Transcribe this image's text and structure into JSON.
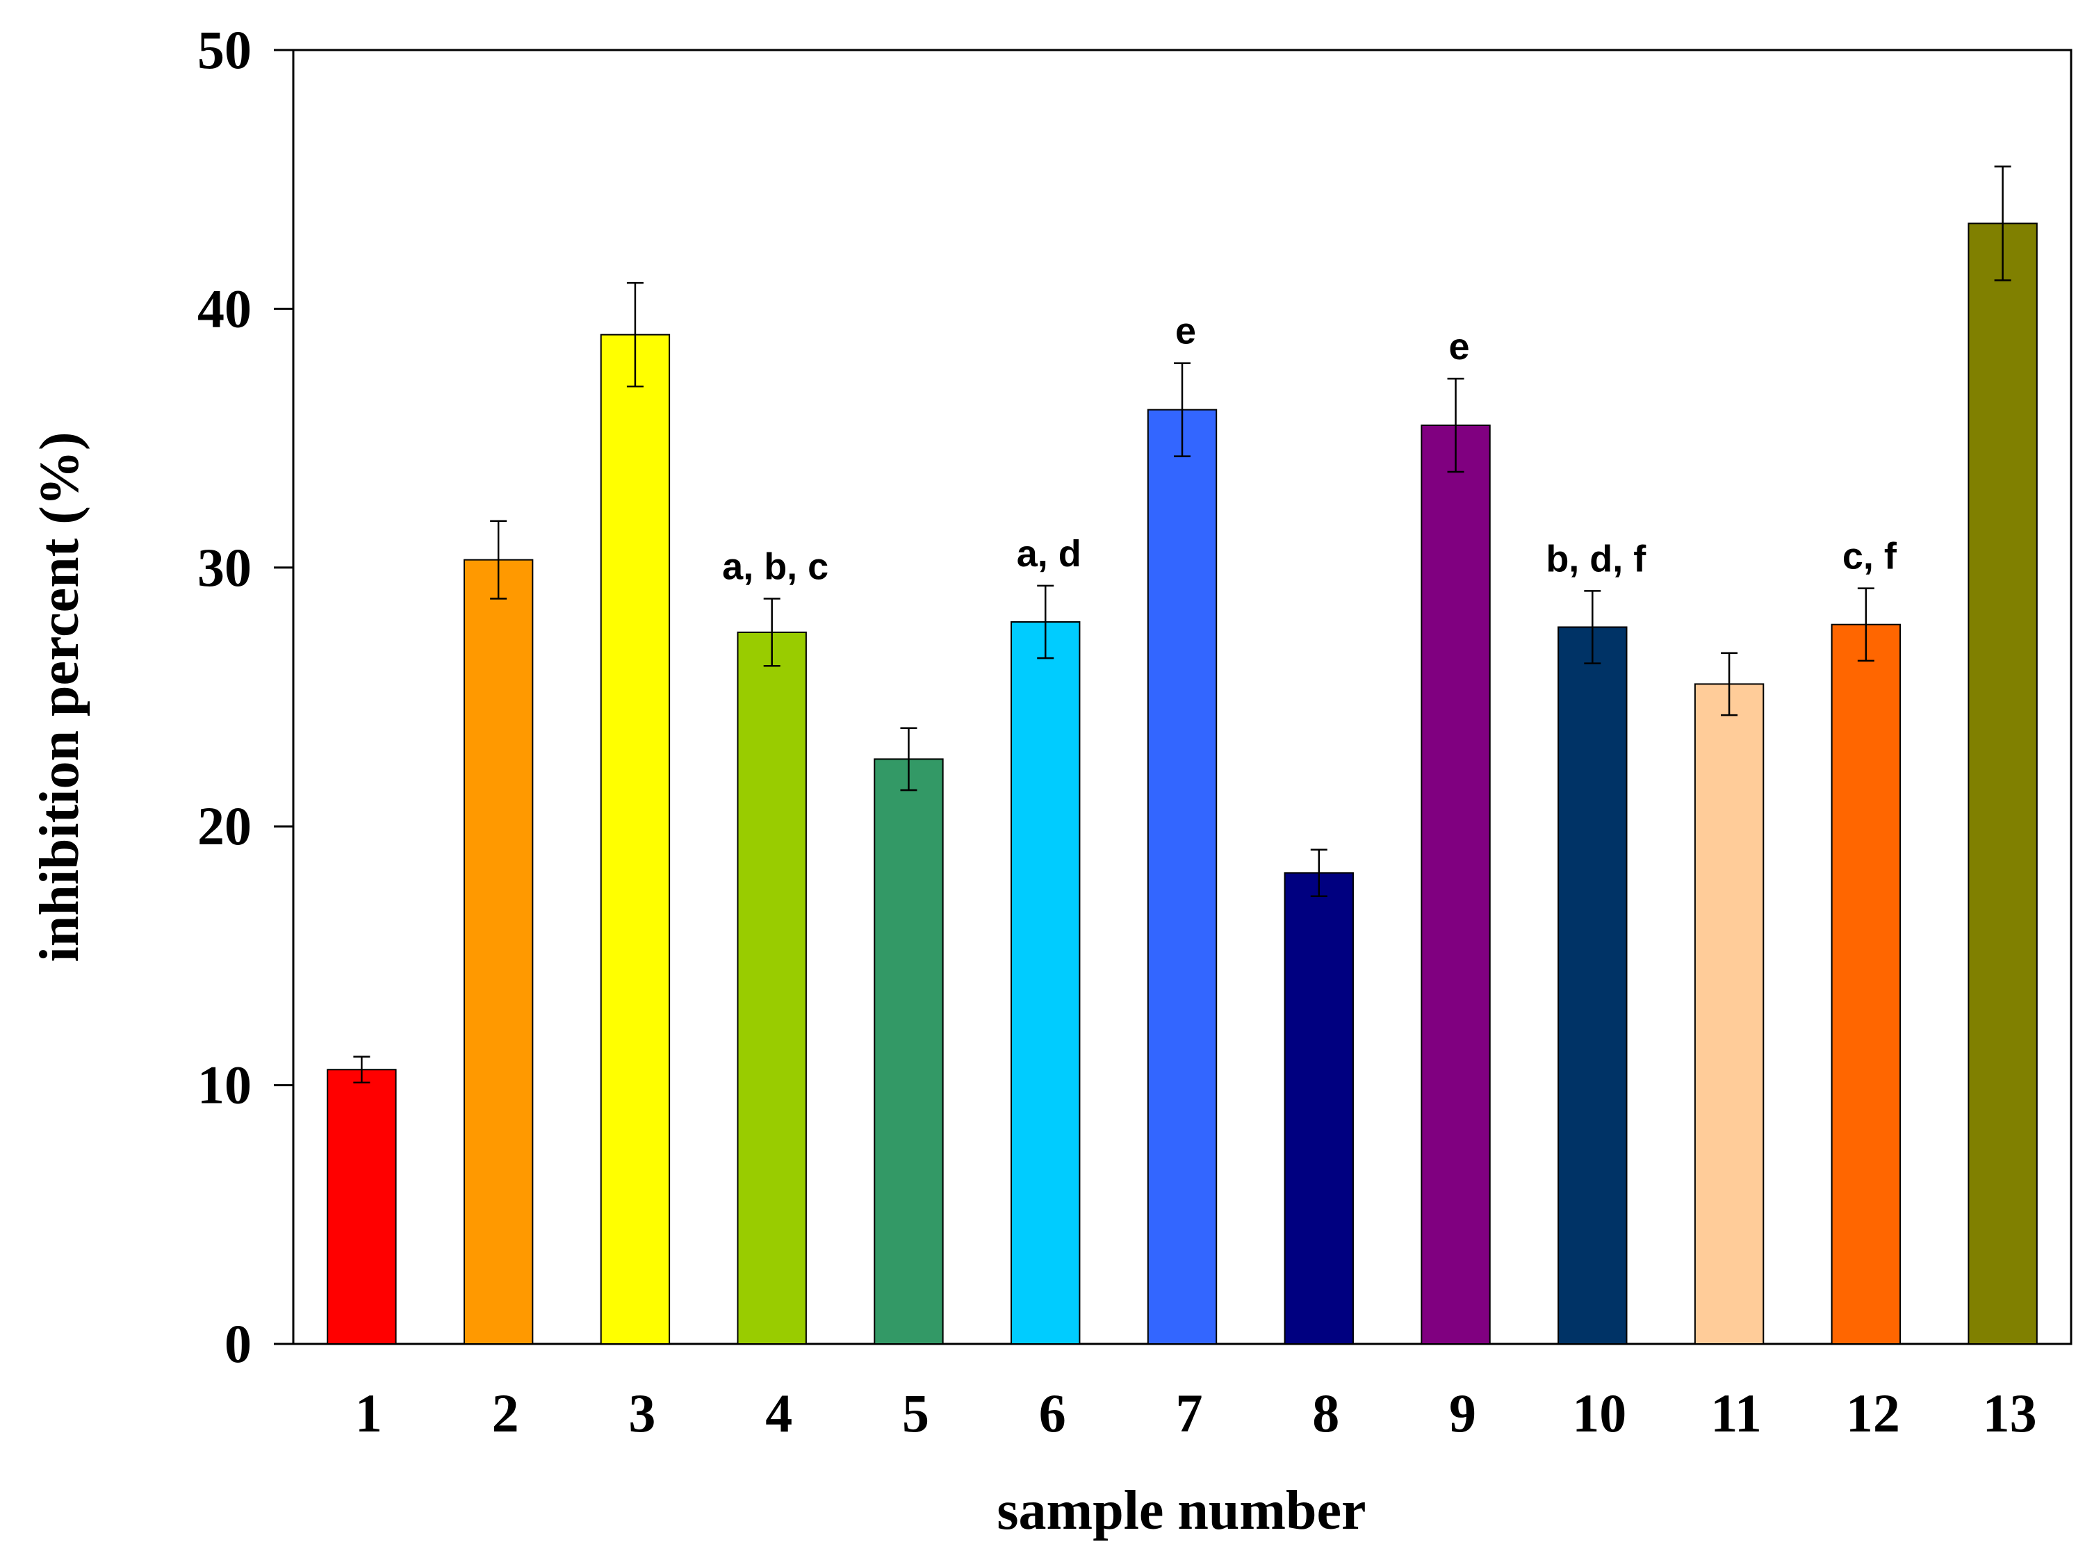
{
  "chart_data": {
    "type": "bar",
    "title": "",
    "xlabel": "sample number",
    "ylabel": "inhibition percent (%)",
    "ylim": [
      0,
      50
    ],
    "yticks": [
      0,
      10,
      20,
      30,
      40,
      50
    ],
    "categories": [
      "1",
      "2",
      "3",
      "4",
      "5",
      "6",
      "7",
      "8",
      "9",
      "10",
      "11",
      "12",
      "13"
    ],
    "values": [
      10.6,
      30.3,
      39.0,
      27.5,
      22.6,
      27.9,
      36.1,
      18.2,
      35.5,
      27.7,
      25.5,
      27.8,
      43.3
    ],
    "errors": [
      0.5,
      1.5,
      2.0,
      1.3,
      1.2,
      1.4,
      1.8,
      0.9,
      1.8,
      1.4,
      1.2,
      1.4,
      2.2
    ],
    "colors": [
      "#ff0000",
      "#ff9900",
      "#ffff00",
      "#99cc00",
      "#339966",
      "#00ccff",
      "#3366ff",
      "#000080",
      "#800080",
      "#003366",
      "#ffcc99",
      "#ff6600",
      "#808000"
    ],
    "annotations": [
      "",
      "",
      "",
      "a, b, c",
      "",
      "a, d",
      "e",
      "",
      "e",
      "b, d, f",
      "",
      "c, f",
      ""
    ],
    "grid": false,
    "legend": "none"
  }
}
